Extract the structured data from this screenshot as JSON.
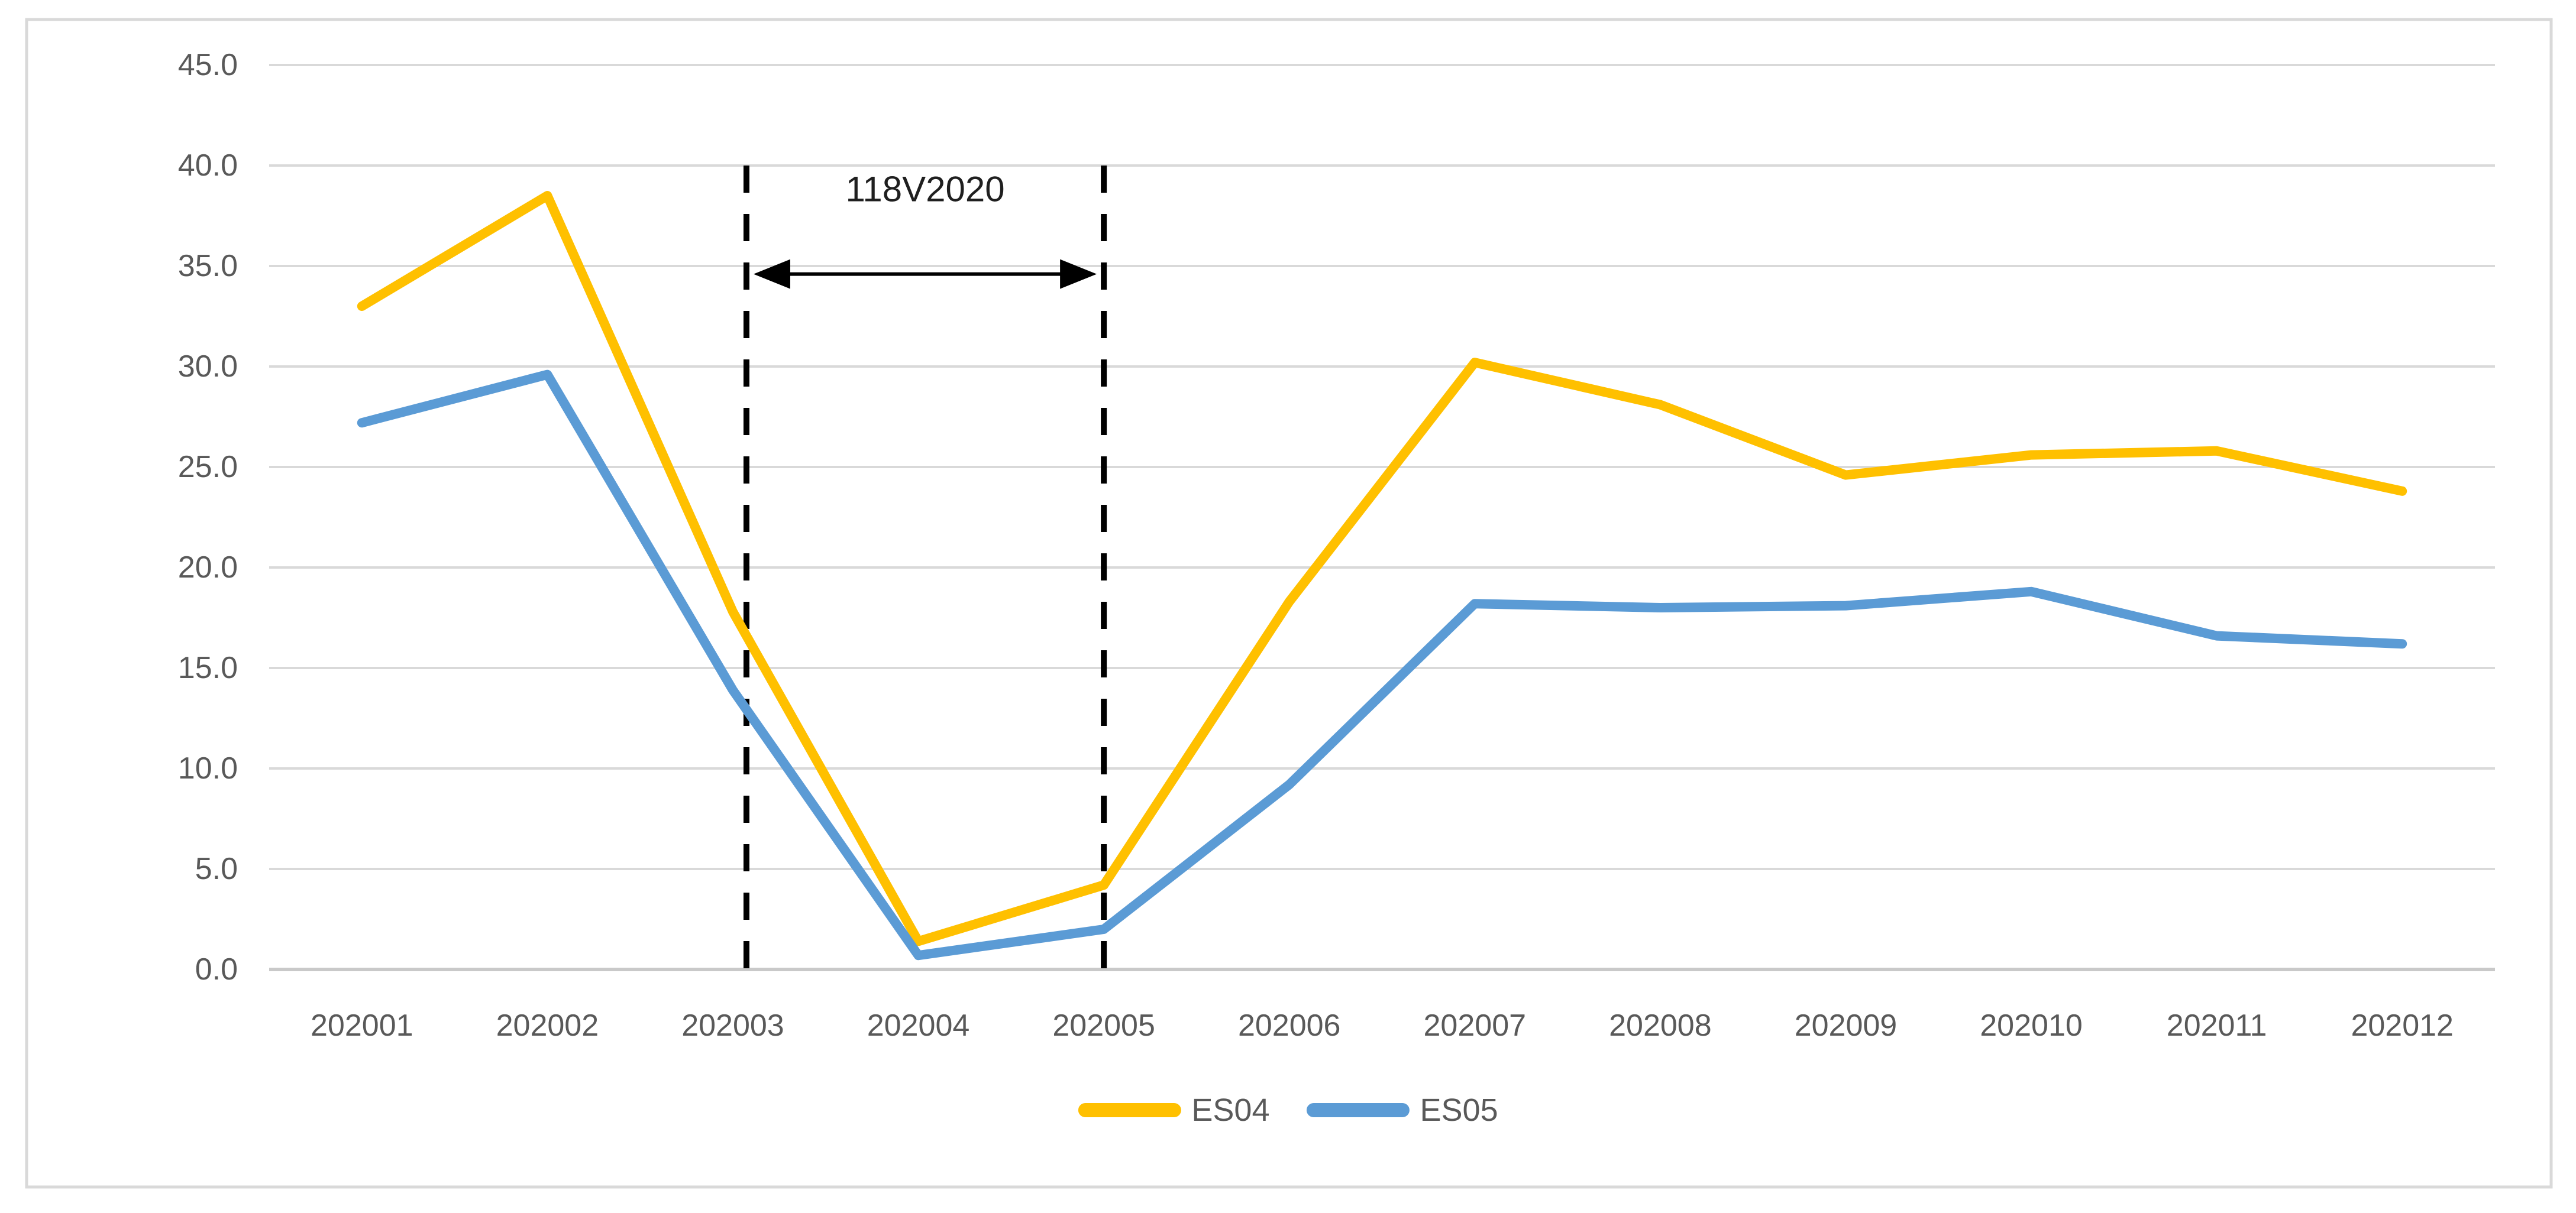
{
  "chart_data": {
    "type": "line",
    "title": "",
    "categories": [
      "202001",
      "202002",
      "202003",
      "202004",
      "202005",
      "202006",
      "202007",
      "202008",
      "202009",
      "202010",
      "202011",
      "202012"
    ],
    "series": [
      {
        "name": "ES04",
        "color": "#FFC000",
        "values": [
          33.0,
          38.5,
          17.8,
          1.4,
          4.2,
          18.3,
          30.2,
          28.1,
          24.6,
          25.6,
          25.8,
          23.8
        ]
      },
      {
        "name": "ES05",
        "color": "#5B9BD5",
        "values": [
          27.2,
          29.6,
          13.9,
          0.7,
          2.0,
          9.2,
          18.2,
          18.0,
          18.1,
          18.8,
          16.6,
          16.2
        ]
      }
    ],
    "ylim": [
      0,
      45
    ],
    "ytick_step": 5,
    "y_tick_labels": [
      "0.0",
      "5.0",
      "10.0",
      "15.0",
      "20.0",
      "25.0",
      "30.0",
      "35.0",
      "40.0",
      "45.0"
    ],
    "xlabel": "",
    "ylabel": "",
    "grid": true,
    "legend_position": "bottom",
    "annotation": {
      "label": "118V2020",
      "from_category": "202003",
      "to_category": "202005",
      "region_top_value": 40,
      "arrow_value": 34.6
    },
    "colors": {
      "gridline": "#d9d9d9",
      "zero_axis": "#c9c9c9",
      "axis_text": "#595959",
      "annotation_line": "#000000",
      "annotation_text": "#1f1f1f",
      "frame_border": "#d9d9d9",
      "background": "#ffffff"
    }
  }
}
